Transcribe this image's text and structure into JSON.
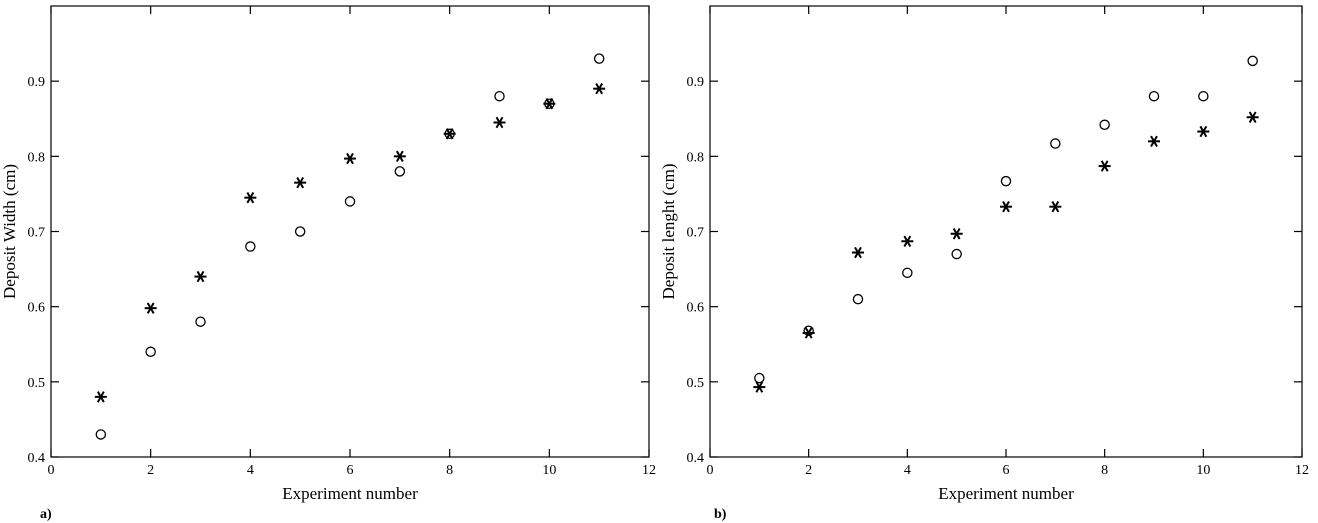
{
  "chart_data": [
    {
      "type": "scatter",
      "panel_label": "a)",
      "xlabel": "Experiment number",
      "ylabel": "Deposit Width (cm)",
      "xlim": [
        0,
        12
      ],
      "ylim": [
        0.4,
        1.0
      ],
      "xticks": [
        "0",
        "2",
        "4",
        "6",
        "8",
        "10",
        "12"
      ],
      "yticks": [
        "0.4",
        "0.5",
        "0.6",
        "0.7",
        "0.8",
        "0.9"
      ],
      "grid": false,
      "legend": "none",
      "series": [
        {
          "marker": "circle",
          "x": [
            1,
            2,
            3,
            4,
            5,
            6,
            7,
            8,
            9,
            10,
            11
          ],
          "y": [
            0.43,
            0.54,
            0.58,
            0.68,
            0.7,
            0.74,
            0.78,
            0.83,
            0.88,
            0.87,
            0.93
          ]
        },
        {
          "marker": "asterisk",
          "x": [
            1,
            2,
            3,
            4,
            5,
            6,
            7,
            8,
            9,
            10,
            11
          ],
          "y": [
            0.48,
            0.598,
            0.64,
            0.745,
            0.765,
            0.797,
            0.8,
            0.83,
            0.845,
            0.87,
            0.89
          ]
        }
      ]
    },
    {
      "type": "scatter",
      "panel_label": "b)",
      "xlabel": "Experiment number",
      "ylabel": "Deposit lenght (cm)",
      "xlim": [
        0,
        12
      ],
      "ylim": [
        0.4,
        1.0
      ],
      "xticks": [
        "0",
        "2",
        "4",
        "6",
        "8",
        "10",
        "12"
      ],
      "yticks": [
        "0.4",
        "0.5",
        "0.6",
        "0.7",
        "0.8",
        "0.9"
      ],
      "grid": false,
      "legend": "none",
      "series": [
        {
          "marker": "circle",
          "x": [
            1,
            2,
            3,
            4,
            5,
            6,
            7,
            8,
            9,
            10,
            11
          ],
          "y": [
            0.505,
            0.568,
            0.61,
            0.645,
            0.67,
            0.767,
            0.817,
            0.842,
            0.88,
            0.88,
            0.927
          ]
        },
        {
          "marker": "asterisk",
          "x": [
            1,
            2,
            3,
            4,
            5,
            6,
            7,
            8,
            9,
            10,
            11
          ],
          "y": [
            0.493,
            0.565,
            0.672,
            0.687,
            0.697,
            0.733,
            0.733,
            0.787,
            0.82,
            0.833,
            0.852
          ]
        }
      ]
    }
  ]
}
